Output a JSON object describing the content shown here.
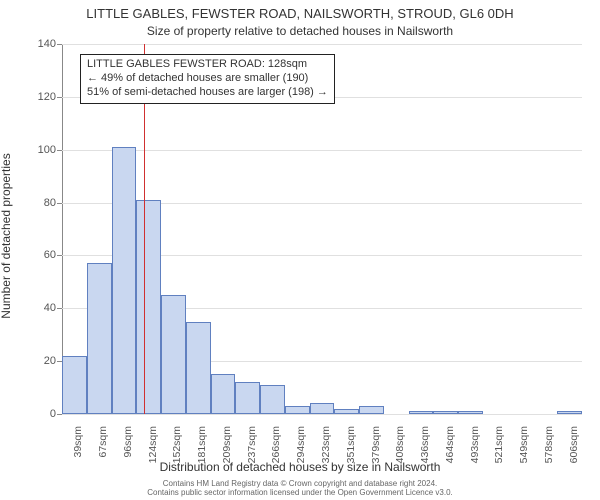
{
  "title": "LITTLE GABLES, FEWSTER ROAD, NAILSWORTH, STROUD, GL6 0DH",
  "subtitle": "Size of property relative to detached houses in Nailsworth",
  "x_axis_title": "Distribution of detached houses by size in Nailsworth",
  "y_axis_title": "Number of detached properties",
  "chart": {
    "type": "histogram",
    "background_color": "#ffffff",
    "grid_color": "#e0e0e0",
    "axis_color": "#888888",
    "bar_fill": "#c9d7f0",
    "bar_border": "#6080c0",
    "marker_line_color": "#d03030",
    "ylim": [
      0,
      140
    ],
    "y_ticks": [
      0,
      20,
      40,
      60,
      80,
      100,
      120,
      140
    ],
    "x_tick_labels": [
      "39sqm",
      "67sqm",
      "96sqm",
      "124sqm",
      "152sqm",
      "181sqm",
      "209sqm",
      "237sqm",
      "266sqm",
      "294sqm",
      "323sqm",
      "351sqm",
      "379sqm",
      "408sqm",
      "436sqm",
      "464sqm",
      "493sqm",
      "521sqm",
      "549sqm",
      "578sqm",
      "606sqm"
    ],
    "values": [
      22,
      57,
      101,
      81,
      45,
      35,
      15,
      12,
      11,
      3,
      4,
      2,
      3,
      0,
      1,
      1,
      1,
      0,
      0,
      0,
      1
    ],
    "marker_value_sqm": 128,
    "x_domain": [
      39,
      606
    ]
  },
  "annotation": {
    "line1": "LITTLE GABLES FEWSTER ROAD: 128sqm",
    "line2": "← 49% of detached houses are smaller (190)",
    "line3": "51% of semi-detached houses are larger (198) →"
  },
  "footer": {
    "line1": "Contains HM Land Registry data © Crown copyright and database right 2024.",
    "line2": "Contains public sector information licensed under the Open Government Licence v3.0."
  },
  "fonts": {
    "title_size": 13,
    "subtitle_size": 12,
    "axis_title_size": 12,
    "tick_size": 11,
    "annotation_size": 11,
    "footer_size": 8
  }
}
